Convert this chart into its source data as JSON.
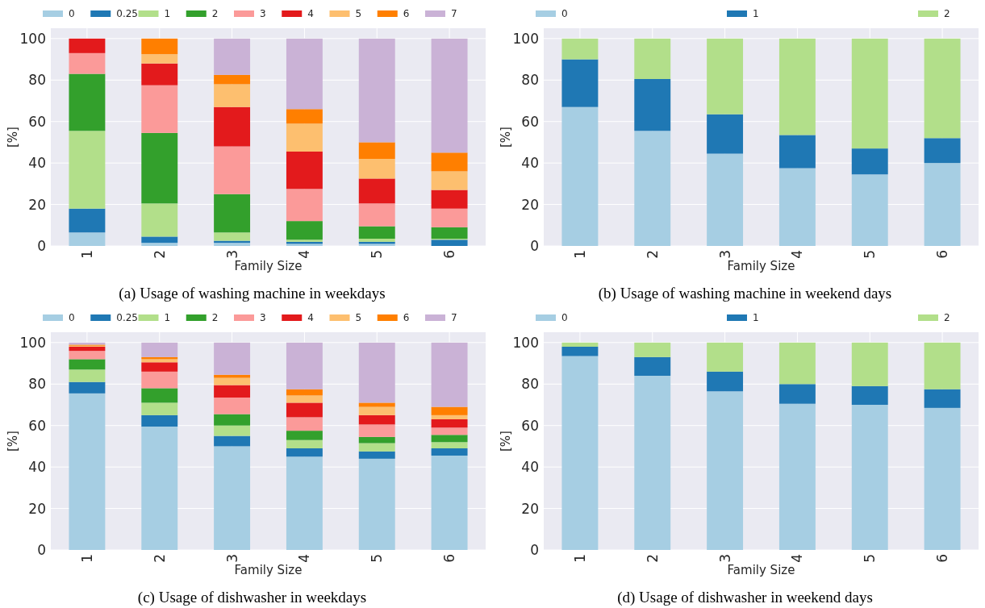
{
  "chart_data": [
    {
      "type": "bar",
      "stacked": true,
      "title": "(a) Usage of washing machine in weekdays",
      "xlabel": "Family Size",
      "ylabel": "[%]",
      "categories": [
        "1",
        "2",
        "3",
        "4",
        "5",
        "6"
      ],
      "ylim": [
        0,
        105
      ],
      "yticks": [
        0,
        20,
        40,
        60,
        80,
        100
      ],
      "grid": true,
      "legend": "top",
      "series": [
        {
          "name": "0",
          "color": "#a6cee3",
          "values": [
            6.5,
            1.5,
            1.5,
            1,
            1,
            null
          ]
        },
        {
          "name": "0.25",
          "color": "#1f78b4",
          "values": [
            11.5,
            3,
            1,
            1,
            1,
            3
          ]
        },
        {
          "name": "1",
          "color": "#b2df8a",
          "values": [
            37.5,
            16,
            4,
            1,
            1.5,
            0.5
          ]
        },
        {
          "name": "2",
          "color": "#33a02c",
          "values": [
            27.5,
            34,
            18.5,
            9,
            6,
            5.5
          ]
        },
        {
          "name": "3",
          "color": "#fb9a99",
          "values": [
            10,
            23,
            23,
            15.5,
            11,
            9
          ]
        },
        {
          "name": "4",
          "color": "#e31a1c",
          "values": [
            7,
            10.5,
            19,
            18,
            12,
            9
          ]
        },
        {
          "name": "5",
          "color": "#fdbf6f",
          "values": [
            0,
            4.5,
            11,
            13.5,
            9.5,
            9
          ]
        },
        {
          "name": "6",
          "color": "#ff7f00",
          "values": [
            0,
            7.5,
            4.5,
            7,
            8,
            9
          ]
        },
        {
          "name": "7",
          "color": "#cab2d6",
          "values": [
            0,
            0,
            17.5,
            34,
            50,
            55
          ]
        }
      ]
    },
    {
      "type": "bar",
      "stacked": true,
      "title": "(b) Usage of washing machine in weekend days",
      "xlabel": "Family Size",
      "ylabel": "[%]",
      "categories": [
        "1",
        "2",
        "3",
        "4",
        "5",
        "6"
      ],
      "ylim": [
        0,
        105
      ],
      "yticks": [
        0,
        20,
        40,
        60,
        80,
        100
      ],
      "grid": true,
      "legend": "top",
      "series": [
        {
          "name": "0",
          "color": "#a6cee3",
          "values": [
            67,
            55.5,
            44.5,
            37.5,
            34.5,
            40
          ]
        },
        {
          "name": "1",
          "color": "#1f78b4",
          "values": [
            23,
            25,
            19,
            16,
            12.5,
            12
          ]
        },
        {
          "name": "2",
          "color": "#b2df8a",
          "values": [
            10,
            19.5,
            36.5,
            46.5,
            53,
            48
          ]
        }
      ]
    },
    {
      "type": "bar",
      "stacked": true,
      "title": "(c) Usage of dishwasher in weekdays",
      "xlabel": "Family Size",
      "ylabel": "[%]",
      "categories": [
        "1",
        "2",
        "3",
        "4",
        "5",
        "6"
      ],
      "ylim": [
        0,
        105
      ],
      "yticks": [
        0,
        20,
        40,
        60,
        80,
        100
      ],
      "grid": true,
      "legend": "top",
      "series": [
        {
          "name": "0",
          "color": "#a6cee3",
          "values": [
            75.5,
            59.5,
            50,
            45,
            44,
            45.5
          ]
        },
        {
          "name": "0.25",
          "color": "#1f78b4",
          "values": [
            5.5,
            5.5,
            5,
            4,
            3.5,
            3.5
          ]
        },
        {
          "name": "1",
          "color": "#b2df8a",
          "values": [
            6,
            6,
            5,
            4,
            4,
            3
          ]
        },
        {
          "name": "2",
          "color": "#33a02c",
          "values": [
            5,
            7,
            5.5,
            4.5,
            3,
            3.5
          ]
        },
        {
          "name": "3",
          "color": "#fb9a99",
          "values": [
            4,
            8,
            8,
            6.5,
            6,
            3.5
          ]
        },
        {
          "name": "4",
          "color": "#e31a1c",
          "values": [
            2,
            4.5,
            6,
            7,
            4.5,
            4
          ]
        },
        {
          "name": "5",
          "color": "#fdbf6f",
          "values": [
            0.5,
            1.5,
            3.5,
            3.5,
            4,
            2
          ]
        },
        {
          "name": "6",
          "color": "#ff7f00",
          "values": [
            0.5,
            1,
            1.5,
            3,
            2,
            4
          ]
        },
        {
          "name": "7",
          "color": "#cab2d6",
          "values": [
            1,
            7,
            15.5,
            22.5,
            29,
            31
          ]
        }
      ]
    },
    {
      "type": "bar",
      "stacked": true,
      "title": "(d) Usage of dishwasher in weekend days",
      "xlabel": "Family Size",
      "ylabel": "[%]",
      "categories": [
        "1",
        "2",
        "3",
        "4",
        "5",
        "6"
      ],
      "ylim": [
        0,
        105
      ],
      "yticks": [
        0,
        20,
        40,
        60,
        80,
        100
      ],
      "grid": true,
      "legend": "top",
      "series": [
        {
          "name": "0",
          "color": "#a6cee3",
          "values": [
            93.5,
            84,
            76.5,
            70.5,
            70,
            68.5
          ]
        },
        {
          "name": "1",
          "color": "#1f78b4",
          "values": [
            4.5,
            9,
            9.5,
            9.5,
            9,
            9
          ]
        },
        {
          "name": "2",
          "color": "#b2df8a",
          "values": [
            2,
            7,
            14,
            20,
            21,
            22.5
          ]
        }
      ]
    }
  ]
}
